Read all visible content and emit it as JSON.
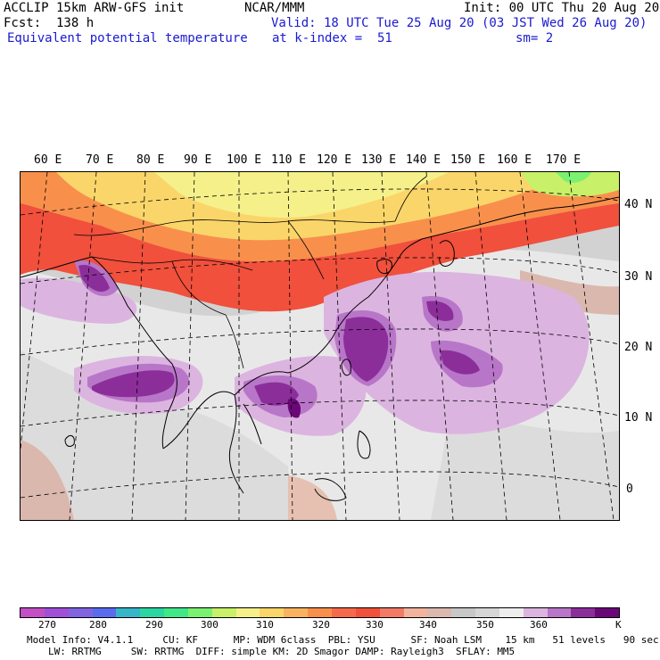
{
  "header": {
    "model": "ACCLIP 15km ARW-GFS init",
    "org": "NCAR/MMM",
    "init": "Init: 00 UTC Thu 20 Aug 20",
    "fcst": "Fcst:  138 h",
    "valid": "Valid: 18 UTC Tue 25 Aug 20 (03 JST Wed 26 Aug 20)",
    "field": "Equivalent potential temperature",
    "level": "at k-index =  51",
    "smooth": "sm= 2"
  },
  "map": {
    "lon_labels": [
      "60 E",
      "70 E",
      "80 E",
      "90 E",
      "100 E",
      "110 E",
      "120 E",
      "130 E",
      "140 E",
      "150 E",
      "160 E",
      "170 E"
    ],
    "lat_labels": [
      "40 N",
      "30 N",
      "20 N",
      "10 N",
      "0"
    ]
  },
  "colorbar": {
    "colors": [
      "#c24fc4",
      "#a050d8",
      "#8064e0",
      "#5a6cee",
      "#36b6c8",
      "#2cd6a0",
      "#40e888",
      "#7cf070",
      "#c8f068",
      "#f5f08a",
      "#fad66a",
      "#f9b35e",
      "#f8904c",
      "#f56a4c",
      "#f0503c",
      "#f27b66",
      "#f2b49e",
      "#dbb8ae",
      "#c8c8c8",
      "#d6d6d6",
      "#eeeeee",
      "#dcb4e0",
      "#b876c8",
      "#8c2e9a",
      "#6a0878"
    ],
    "labels": [
      "270",
      "280",
      "290",
      "300",
      "310",
      "320",
      "330",
      "340",
      "350",
      "360"
    ],
    "unit": "K"
  },
  "model_info": {
    "line1": "Model Info: V4.1.1     CU: KF      MP: WDM 6class  PBL: YSU      SF: Noah LSM    15 km   51 levels   90 sec",
    "line2": "LW: RRTMG     SW: RRTMG  DIFF: simple KM: 2D Smagor DAMP: Rayleigh3  SFLAY: MM5"
  }
}
